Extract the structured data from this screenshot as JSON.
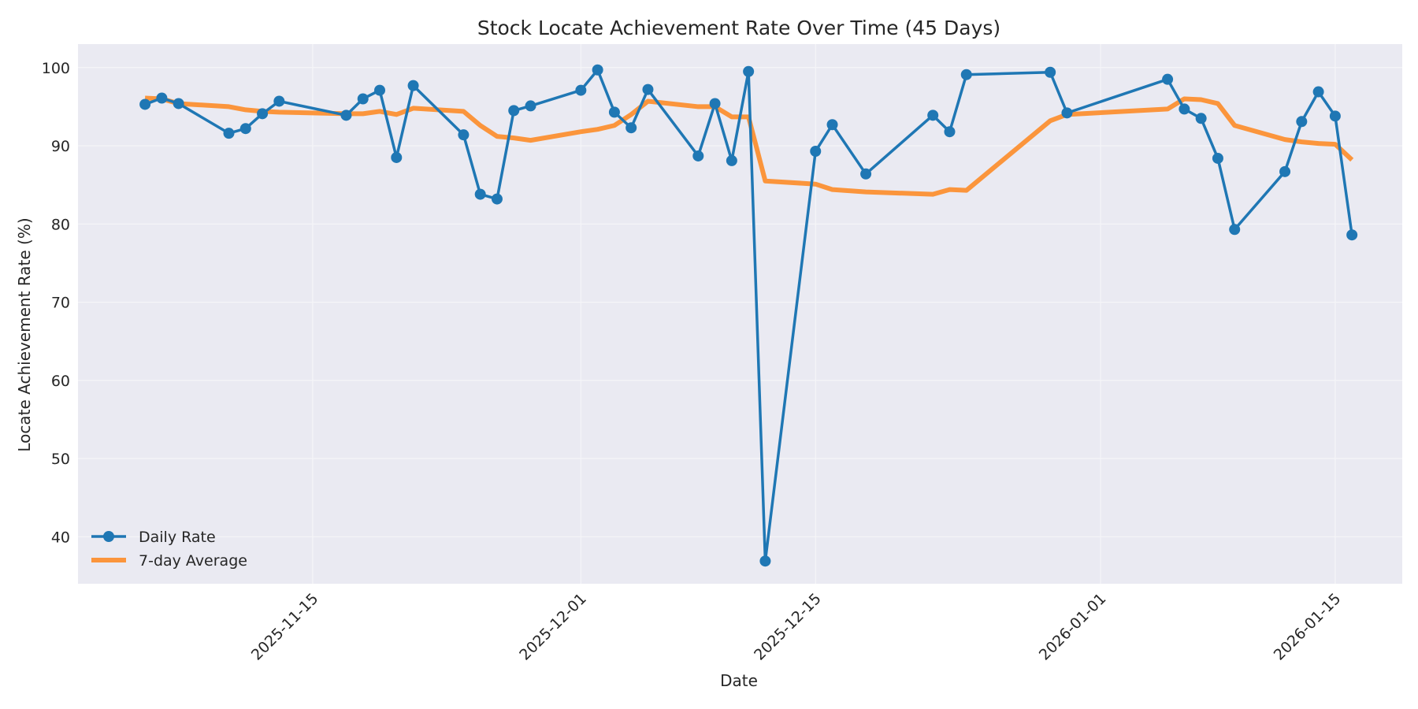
{
  "chart_data": {
    "type": "line",
    "title": "Stock Locate Achievement Rate Over Time (45 Days)",
    "xlabel": "Date",
    "ylabel": "Locate Achievement Rate (%)",
    "ylim": [
      34,
      103
    ],
    "yticks": [
      40,
      50,
      60,
      70,
      80,
      90,
      100
    ],
    "xticks": [
      "2025-11-15",
      "2025-12-01",
      "2025-12-15",
      "2026-01-01",
      "2026-01-15"
    ],
    "xlim": [
      "2025-11-01",
      "2026-01-19"
    ],
    "grid": true,
    "legend_position": "lower left",
    "x": [
      "2025-11-05",
      "2025-11-06",
      "2025-11-07",
      "2025-11-10",
      "2025-11-11",
      "2025-11-12",
      "2025-11-13",
      "2025-11-17",
      "2025-11-18",
      "2025-11-19",
      "2025-11-20",
      "2025-11-21",
      "2025-11-24",
      "2025-11-25",
      "2025-11-26",
      "2025-11-27",
      "2025-11-28",
      "2025-12-01",
      "2025-12-02",
      "2025-12-03",
      "2025-12-04",
      "2025-12-05",
      "2025-12-08",
      "2025-12-09",
      "2025-12-10",
      "2025-12-11",
      "2025-12-12",
      "2025-12-15",
      "2025-12-16",
      "2025-12-18",
      "2025-12-22",
      "2025-12-23",
      "2025-12-24",
      "2025-12-29",
      "2025-12-30",
      "2026-01-05",
      "2026-01-06",
      "2026-01-07",
      "2026-01-08",
      "2026-01-09",
      "2026-01-12",
      "2026-01-13",
      "2026-01-14",
      "2026-01-15",
      "2026-01-16"
    ],
    "series": [
      {
        "name": "Daily Rate",
        "color": "#1f77b4",
        "marker": "circle",
        "values": [
          95.3,
          96.1,
          95.4,
          91.6,
          92.2,
          94.1,
          95.7,
          93.9,
          96.0,
          97.1,
          88.5,
          97.7,
          91.4,
          83.8,
          83.2,
          94.5,
          95.1,
          97.1,
          99.7,
          94.3,
          92.3,
          97.2,
          88.7,
          95.4,
          88.1,
          99.5,
          36.9,
          89.3,
          92.7,
          86.4,
          93.9,
          91.8,
          99.1,
          99.4,
          94.2,
          98.5,
          94.7,
          93.5,
          88.4,
          79.3,
          86.7,
          93.1,
          96.9,
          93.8,
          78.6
        ]
      },
      {
        "name": "7-day Average",
        "color": "#ff7f0e",
        "marker": "none",
        "values": [
          96.1,
          96.0,
          95.4,
          95.0,
          94.6,
          94.4,
          94.3,
          94.1,
          94.1,
          94.4,
          94.0,
          94.8,
          94.4,
          92.6,
          91.2,
          91.0,
          90.7,
          91.8,
          92.1,
          92.6,
          94.0,
          95.7,
          95.0,
          95.0,
          93.7,
          93.7,
          85.5,
          85.1,
          84.4,
          84.1,
          83.8,
          84.4,
          84.3,
          93.2,
          94.0,
          94.7,
          96.0,
          95.9,
          95.4,
          92.6,
          90.8,
          90.5,
          90.3,
          90.2,
          88.2
        ]
      }
    ]
  },
  "colors": {
    "plot_background": "#eaeaf2",
    "grid": "#f5f5f8",
    "daily": "#1f77b4",
    "average": "#ff7f0e"
  }
}
